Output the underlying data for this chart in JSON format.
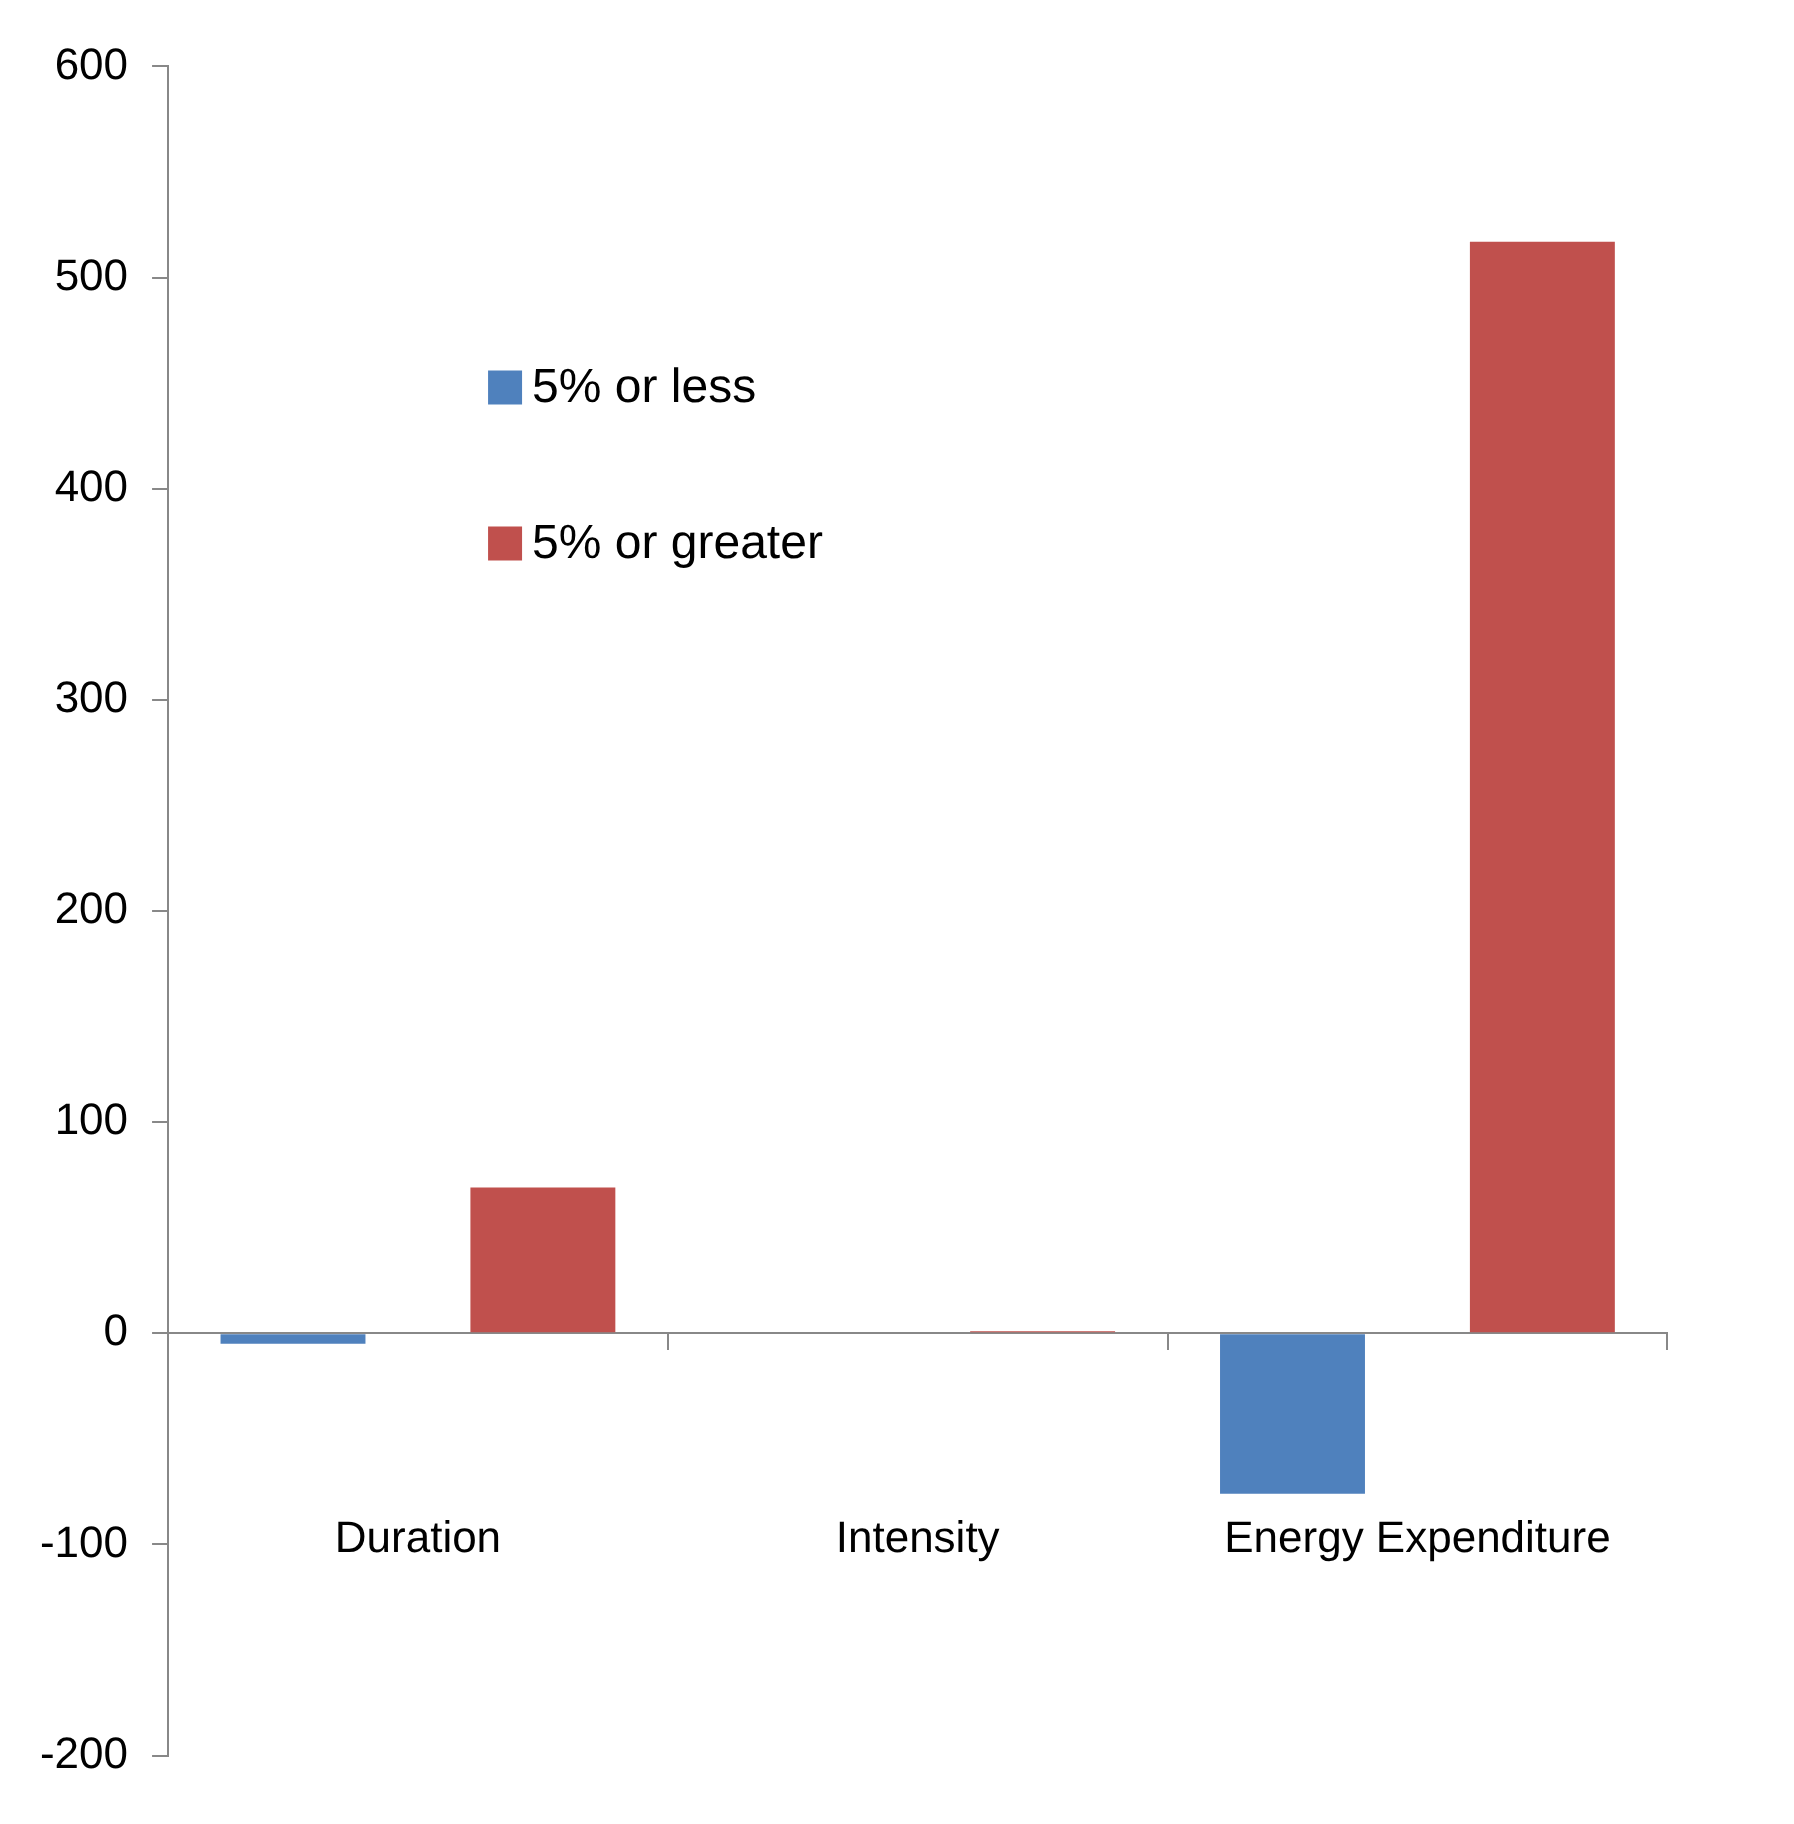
{
  "chart_data": {
    "type": "bar",
    "categories": [
      "Duration",
      "Intensity",
      "Energy Expenditure"
    ],
    "series": [
      {
        "name": "5% or less",
        "color": "#4f81bd",
        "values": [
          -5,
          0,
          -76
        ]
      },
      {
        "name": "5% or greater",
        "color": "#c0504d",
        "values": [
          69,
          1,
          517
        ]
      }
    ],
    "ylim": [
      -200,
      600
    ],
    "yticks": [
      -200,
      -100,
      0,
      100,
      200,
      300,
      400,
      500,
      600
    ],
    "legend": "top left"
  }
}
